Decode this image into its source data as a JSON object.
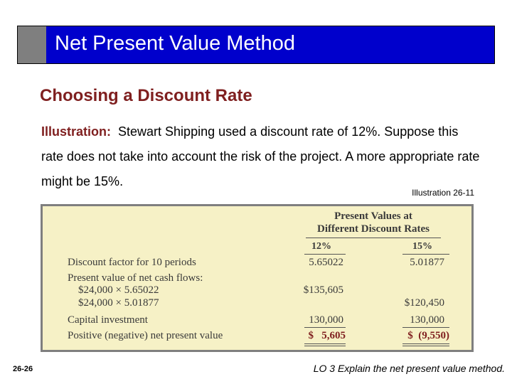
{
  "slide": {
    "title": "Net Present Value Method",
    "subtitle": "Choosing a Discount Rate",
    "lead": "Illustration:",
    "body": "Stewart Shipping used a discount rate of 12%. Suppose this rate does not take into account the risk of the project. A more appropriate rate might be 15%.",
    "illustration_ref": "Illustration 26-11"
  },
  "table": {
    "header_line1": "Present Values at",
    "header_line2": "Different Discount Rates",
    "col1": "12%",
    "col2": "15%",
    "rows": [
      {
        "label": "Discount factor for 10 periods",
        "c1": "5.65022",
        "c2": "5.01877"
      },
      {
        "label": "Present value of net cash flows:",
        "c1": "",
        "c2": ""
      },
      {
        "label": "$24,000 × 5.65022",
        "c1": "$135,605",
        "c2": ""
      },
      {
        "label": "$24,000 × 5.01877",
        "c1": "",
        "c2": "$120,450"
      },
      {
        "label": "Capital investment",
        "c1": "130,000",
        "c2": "130,000"
      },
      {
        "label": "Positive (negative) net present value",
        "c1": "$   5,605",
        "c2": "$  (9,550)"
      }
    ]
  },
  "footer": {
    "page": "26-26",
    "lo": "LO 3  Explain the net present value method."
  },
  "colors": {
    "title_bar": "#0000cc",
    "accent": "#7f1f1f",
    "table_bg": "#f6f1c6"
  }
}
